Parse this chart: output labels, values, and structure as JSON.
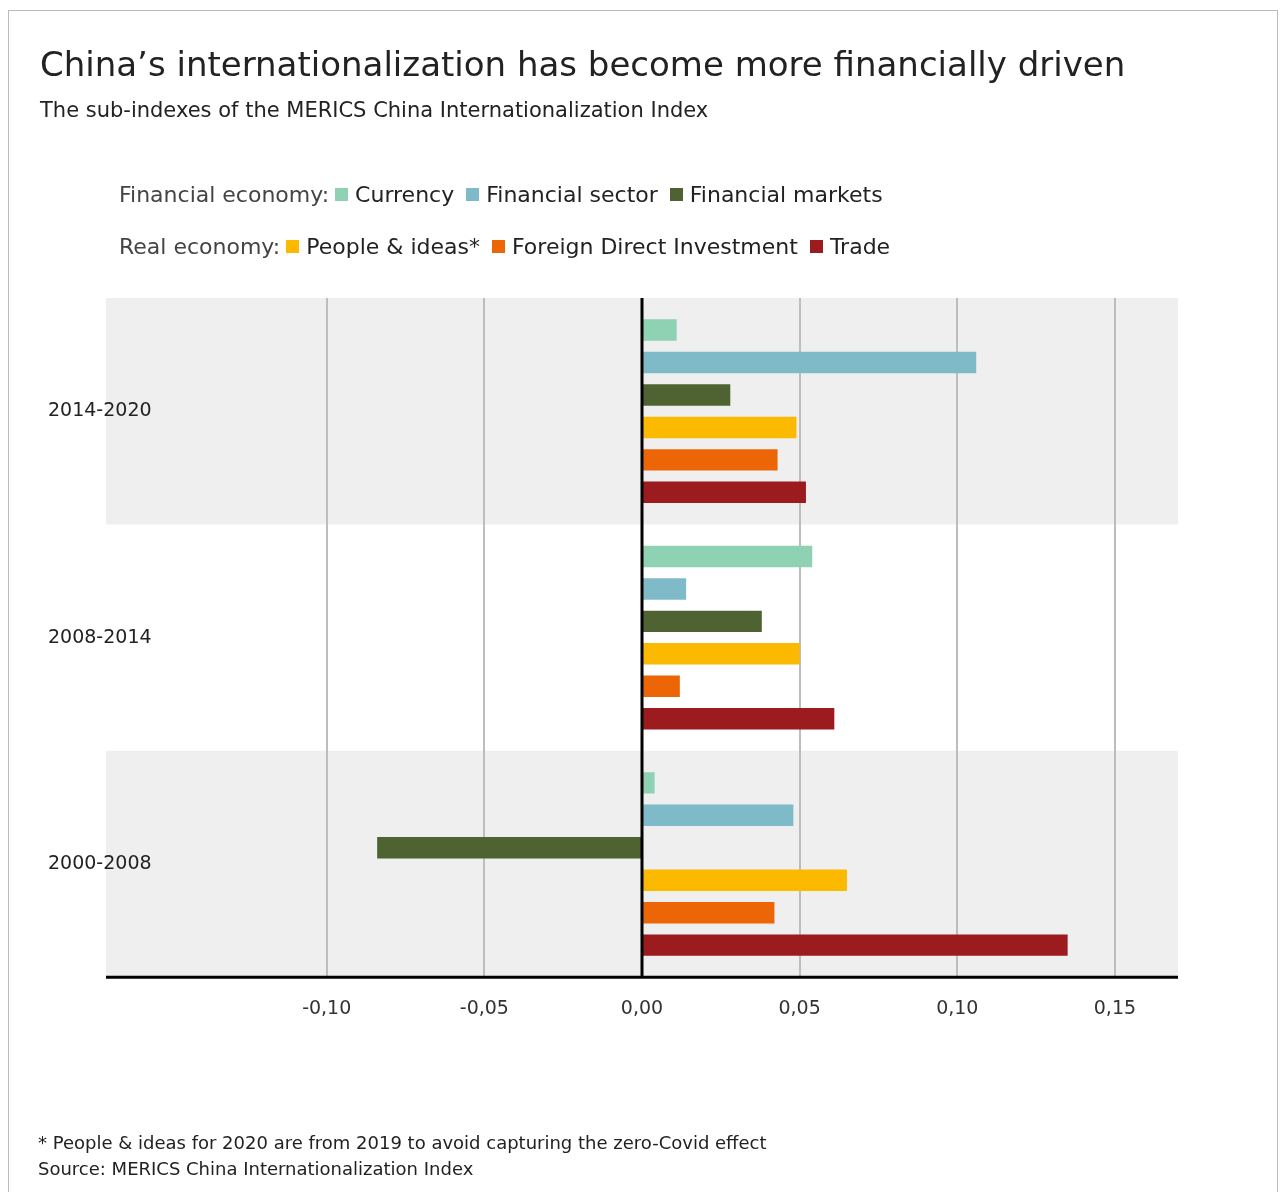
{
  "chart_data": {
    "type": "bar",
    "orientation": "horizontal",
    "title": "China’s internationalization has become more financially driven",
    "subtitle": "The sub-indexes of the MERICS China Internationalization Index",
    "categories": [
      "2014-2020",
      "2008-2014",
      "2000-2008"
    ],
    "series": [
      {
        "name": "Currency",
        "color": "#8fd1b3",
        "values": [
          0.011,
          0.054,
          0.004
        ]
      },
      {
        "name": "Financial sector",
        "color": "#7fbac8",
        "values": [
          0.106,
          0.014,
          0.048
        ]
      },
      {
        "name": "Financial markets",
        "color": "#4f6332",
        "values": [
          0.028,
          0.038,
          -0.084
        ]
      },
      {
        "name": "People & ideas*",
        "color": "#fbba00",
        "values": [
          0.049,
          0.05,
          0.065
        ]
      },
      {
        "name": "Foreign Direct Investment",
        "color": "#ec6608",
        "values": [
          0.043,
          0.012,
          0.042
        ]
      },
      {
        "name": "Trade",
        "color": "#9b1b1f",
        "values": [
          0.052,
          0.061,
          0.135
        ]
      }
    ],
    "xlim": [
      -0.17,
      0.17
    ],
    "xticks": [
      {
        "value": -0.1,
        "label": "-0,10"
      },
      {
        "value": -0.05,
        "label": "-0,05"
      },
      {
        "value": 0,
        "label": "0,00"
      },
      {
        "value": 0.05,
        "label": "0,05"
      },
      {
        "value": 0.1,
        "label": "0,10"
      },
      {
        "value": 0.15,
        "label": "0,15"
      }
    ],
    "grid": "x",
    "legend": "top",
    "annotations": [
      "Financial economy:",
      "Real economy:",
      "* People & ideas for 2020 are from 2019 to avoid capturing the zero-Covid effect",
      "Source: MERICS China Internationalization Index"
    ]
  }
}
